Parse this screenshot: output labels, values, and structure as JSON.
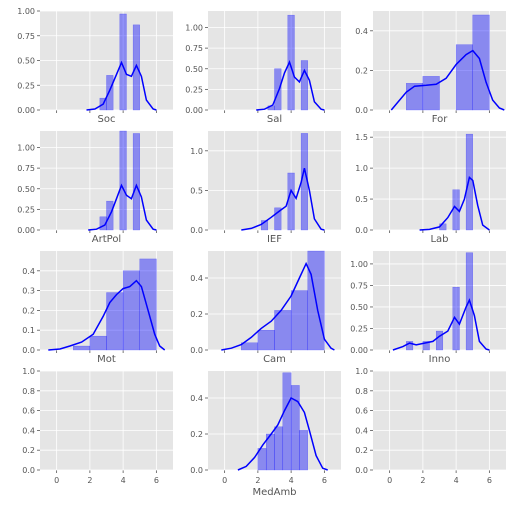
{
  "figure": {
    "background": "#ffffff",
    "panel_background": "#e5e5e5",
    "grid_color": "#ffffff",
    "bar_color": "#0000ff",
    "kde_color": "#0000ff",
    "tick_color": "#555555"
  },
  "chart_data": [
    {
      "type": "bar",
      "xlabel": "Soc",
      "xlim": [
        -1,
        7
      ],
      "ylim": [
        0,
        1.0
      ],
      "yticks": [
        "0.00",
        "0.25",
        "0.50",
        "0.75",
        "1.00"
      ],
      "ytick_values": [
        0,
        0.25,
        0.5,
        0.75,
        1.0
      ],
      "xticks_shown": false,
      "bins": [
        [
          2.6,
          3.0,
          0.12
        ],
        [
          3.0,
          3.4,
          0.35
        ],
        [
          3.4,
          3.8,
          0
        ],
        [
          3.8,
          4.2,
          0.97
        ],
        [
          4.2,
          4.6,
          0
        ],
        [
          4.6,
          5.0,
          0.86
        ]
      ],
      "kde": [
        [
          1.8,
          0
        ],
        [
          2.3,
          0.01
        ],
        [
          2.8,
          0.06
        ],
        [
          3.2,
          0.2
        ],
        [
          3.6,
          0.36
        ],
        [
          3.9,
          0.48
        ],
        [
          4.2,
          0.36
        ],
        [
          4.5,
          0.34
        ],
        [
          4.8,
          0.45
        ],
        [
          5.1,
          0.34
        ],
        [
          5.4,
          0.1
        ],
        [
          5.8,
          0.01
        ],
        [
          6.0,
          0
        ]
      ]
    },
    {
      "type": "bar",
      "xlabel": "Sal",
      "xlim": [
        -1,
        7
      ],
      "ylim": [
        0,
        1.2
      ],
      "yticks": [
        "0.00",
        "0.25",
        "0.50",
        "0.75",
        "1.00"
      ],
      "ytick_values": [
        0,
        0.25,
        0.5,
        0.75,
        1.0
      ],
      "xticks_shown": false,
      "bins": [
        [
          2.6,
          3.0,
          0.05
        ],
        [
          3.0,
          3.4,
          0.5
        ],
        [
          3.4,
          3.8,
          0
        ],
        [
          3.8,
          4.2,
          1.15
        ],
        [
          4.2,
          4.6,
          0
        ],
        [
          4.6,
          5.0,
          0.6
        ]
      ],
      "kde": [
        [
          1.9,
          0
        ],
        [
          2.4,
          0.01
        ],
        [
          2.9,
          0.06
        ],
        [
          3.3,
          0.26
        ],
        [
          3.6,
          0.45
        ],
        [
          3.9,
          0.58
        ],
        [
          4.2,
          0.4
        ],
        [
          4.5,
          0.34
        ],
        [
          4.8,
          0.48
        ],
        [
          5.1,
          0.36
        ],
        [
          5.4,
          0.1
        ],
        [
          5.8,
          0.01
        ],
        [
          6.0,
          0
        ]
      ]
    },
    {
      "type": "bar",
      "xlabel": "For",
      "xlim": [
        -1,
        7
      ],
      "ylim": [
        0,
        0.5
      ],
      "yticks": [
        "0.0",
        "0.2",
        "0.4"
      ],
      "ytick_values": [
        0,
        0.2,
        0.4
      ],
      "xticks_shown": false,
      "bins": [
        [
          1.0,
          2.0,
          0.135
        ],
        [
          2.0,
          3.0,
          0.17
        ],
        [
          3.0,
          4.0,
          0
        ],
        [
          4.0,
          5.0,
          0.33
        ],
        [
          5.0,
          6.0,
          0.48
        ]
      ],
      "kde": [
        [
          0.1,
          0
        ],
        [
          0.5,
          0.04
        ],
        [
          1.0,
          0.09
        ],
        [
          1.5,
          0.12
        ],
        [
          2.2,
          0.125
        ],
        [
          2.8,
          0.13
        ],
        [
          3.4,
          0.16
        ],
        [
          4.0,
          0.23
        ],
        [
          4.6,
          0.28
        ],
        [
          5.0,
          0.3
        ],
        [
          5.4,
          0.26
        ],
        [
          5.8,
          0.14
        ],
        [
          6.2,
          0.05
        ],
        [
          6.6,
          0.01
        ],
        [
          6.9,
          0
        ]
      ]
    },
    {
      "type": "bar",
      "xlabel": "ArtPol",
      "xlim": [
        -1,
        7
      ],
      "ylim": [
        0,
        1.2
      ],
      "yticks": [
        "0.00",
        "0.25",
        "0.50",
        "0.75",
        "1.00"
      ],
      "ytick_values": [
        0,
        0.25,
        0.5,
        0.75,
        1.0
      ],
      "xticks_shown": false,
      "bins": [
        [
          2.6,
          3.0,
          0.16
        ],
        [
          3.0,
          3.4,
          0.35
        ],
        [
          3.4,
          3.8,
          0
        ],
        [
          3.8,
          4.2,
          1.2
        ],
        [
          4.2,
          4.6,
          0
        ],
        [
          4.6,
          5.0,
          1.17
        ]
      ],
      "kde": [
        [
          1.9,
          0
        ],
        [
          2.4,
          0.01
        ],
        [
          2.9,
          0.06
        ],
        [
          3.3,
          0.22
        ],
        [
          3.6,
          0.38
        ],
        [
          3.9,
          0.54
        ],
        [
          4.2,
          0.42
        ],
        [
          4.5,
          0.38
        ],
        [
          4.8,
          0.54
        ],
        [
          5.1,
          0.4
        ],
        [
          5.4,
          0.12
        ],
        [
          5.8,
          0.01
        ],
        [
          6.0,
          0
        ]
      ]
    },
    {
      "type": "bar",
      "xlabel": "IEF",
      "xlim": [
        -1,
        7
      ],
      "ylim": [
        0,
        1.25
      ],
      "yticks": [
        "0.0",
        "0.5",
        "1.0"
      ],
      "ytick_values": [
        0,
        0.5,
        1.0
      ],
      "xticks_shown": false,
      "bins": [
        [
          2.2,
          2.6,
          0.12
        ],
        [
          2.6,
          3.0,
          0
        ],
        [
          3.0,
          3.4,
          0.28
        ],
        [
          3.4,
          3.8,
          0
        ],
        [
          3.8,
          4.2,
          0.72
        ],
        [
          4.2,
          4.6,
          0
        ],
        [
          4.6,
          5.0,
          1.22
        ]
      ],
      "kde": [
        [
          1.0,
          0
        ],
        [
          1.6,
          0.02
        ],
        [
          2.2,
          0.07
        ],
        [
          2.8,
          0.16
        ],
        [
          3.3,
          0.24
        ],
        [
          3.7,
          0.3
        ],
        [
          4.0,
          0.5
        ],
        [
          4.3,
          0.4
        ],
        [
          4.6,
          0.6
        ],
        [
          4.8,
          0.78
        ],
        [
          5.1,
          0.5
        ],
        [
          5.4,
          0.14
        ],
        [
          5.8,
          0.01
        ],
        [
          6.0,
          0
        ]
      ]
    },
    {
      "type": "bar",
      "xlabel": "Lab",
      "xlim": [
        -1,
        7
      ],
      "ylim": [
        0,
        1.6
      ],
      "yticks": [
        "0.0",
        "0.5",
        "1.0",
        "1.5"
      ],
      "ytick_values": [
        0,
        0.5,
        1.0,
        1.5
      ],
      "xticks_shown": false,
      "bins": [
        [
          3.0,
          3.4,
          0.1
        ],
        [
          3.4,
          3.8,
          0
        ],
        [
          3.8,
          4.2,
          0.65
        ],
        [
          4.2,
          4.6,
          0
        ],
        [
          4.6,
          5.0,
          1.55
        ]
      ],
      "kde": [
        [
          1.8,
          0
        ],
        [
          2.4,
          0.01
        ],
        [
          3.0,
          0.05
        ],
        [
          3.5,
          0.2
        ],
        [
          3.9,
          0.38
        ],
        [
          4.2,
          0.3
        ],
        [
          4.5,
          0.5
        ],
        [
          4.8,
          0.85
        ],
        [
          5.0,
          0.8
        ],
        [
          5.3,
          0.4
        ],
        [
          5.6,
          0.08
        ],
        [
          6.0,
          0
        ]
      ]
    },
    {
      "type": "bar",
      "xlabel": "Mot",
      "xlim": [
        -1,
        7
      ],
      "ylim": [
        0,
        0.5
      ],
      "yticks": [
        "0.0",
        "0.1",
        "0.2",
        "0.3",
        "0.4"
      ],
      "ytick_values": [
        0,
        0.1,
        0.2,
        0.3,
        0.4
      ],
      "xticks_shown": false,
      "bins": [
        [
          1.0,
          2.0,
          0.02
        ],
        [
          2.0,
          3.0,
          0.07
        ],
        [
          3.0,
          4.0,
          0.29
        ],
        [
          4.0,
          5.0,
          0.4
        ],
        [
          5.0,
          6.0,
          0.46
        ]
      ],
      "kde": [
        [
          -0.5,
          0
        ],
        [
          0.2,
          0.005
        ],
        [
          0.8,
          0.02
        ],
        [
          1.5,
          0.04
        ],
        [
          2.2,
          0.08
        ],
        [
          2.8,
          0.17
        ],
        [
          3.2,
          0.24
        ],
        [
          3.6,
          0.28
        ],
        [
          4.0,
          0.31
        ],
        [
          4.4,
          0.32
        ],
        [
          4.8,
          0.35
        ],
        [
          5.1,
          0.32
        ],
        [
          5.5,
          0.2
        ],
        [
          5.9,
          0.08
        ],
        [
          6.2,
          0.02
        ],
        [
          6.5,
          0
        ]
      ]
    },
    {
      "type": "bar",
      "xlabel": "Cam",
      "xlim": [
        -1,
        7
      ],
      "ylim": [
        0,
        0.55
      ],
      "yticks": [
        "0.0",
        "0.2",
        "0.4"
      ],
      "ytick_values": [
        0,
        0.2,
        0.4
      ],
      "xticks_shown": false,
      "bins": [
        [
          1.0,
          2.0,
          0.04
        ],
        [
          2.0,
          3.0,
          0.11
        ],
        [
          3.0,
          4.0,
          0.22
        ],
        [
          4.0,
          5.0,
          0.33
        ],
        [
          5.0,
          6.0,
          0.55
        ]
      ],
      "kde": [
        [
          -0.2,
          0
        ],
        [
          0.4,
          0.01
        ],
        [
          1.0,
          0.03
        ],
        [
          1.6,
          0.07
        ],
        [
          2.2,
          0.12
        ],
        [
          2.8,
          0.16
        ],
        [
          3.4,
          0.22
        ],
        [
          4.0,
          0.3
        ],
        [
          4.5,
          0.4
        ],
        [
          4.9,
          0.48
        ],
        [
          5.2,
          0.42
        ],
        [
          5.6,
          0.22
        ],
        [
          6.0,
          0.06
        ],
        [
          6.4,
          0.01
        ],
        [
          6.6,
          0
        ]
      ]
    },
    {
      "type": "bar",
      "xlabel": "Inno",
      "xlim": [
        -1,
        7
      ],
      "ylim": [
        0,
        1.15
      ],
      "yticks": [
        "0.00",
        "0.25",
        "0.50",
        "0.75",
        "1.00"
      ],
      "ytick_values": [
        0,
        0.25,
        0.5,
        0.75,
        1.0
      ],
      "xticks_shown": false,
      "bins": [
        [
          1.0,
          1.4,
          0.1
        ],
        [
          1.4,
          2.0,
          0
        ],
        [
          2.0,
          2.4,
          0.1
        ],
        [
          2.4,
          2.8,
          0
        ],
        [
          2.8,
          3.2,
          0.22
        ],
        [
          3.2,
          3.8,
          0
        ],
        [
          3.8,
          4.2,
          0.73
        ],
        [
          4.2,
          4.6,
          0
        ],
        [
          4.6,
          5.0,
          1.13
        ]
      ],
      "kde": [
        [
          0.2,
          0
        ],
        [
          0.8,
          0.04
        ],
        [
          1.2,
          0.08
        ],
        [
          1.6,
          0.06
        ],
        [
          2.1,
          0.08
        ],
        [
          2.6,
          0.1
        ],
        [
          3.0,
          0.16
        ],
        [
          3.5,
          0.22
        ],
        [
          3.9,
          0.38
        ],
        [
          4.2,
          0.3
        ],
        [
          4.6,
          0.5
        ],
        [
          4.8,
          0.58
        ],
        [
          5.1,
          0.4
        ],
        [
          5.4,
          0.1
        ],
        [
          5.8,
          0.01
        ],
        [
          6.0,
          0
        ]
      ]
    },
    {
      "type": "bar",
      "xlabel": "",
      "xlim": [
        -1,
        7
      ],
      "ylim": [
        0,
        1.0
      ],
      "yticks": [
        "0.0",
        "0.2",
        "0.4",
        "0.6",
        "0.8",
        "1.0"
      ],
      "ytick_values": [
        0,
        0.2,
        0.4,
        0.6,
        0.8,
        1.0
      ],
      "xticks_shown": true,
      "xticks": [
        "0",
        "2",
        "4",
        "6"
      ],
      "xtick_values": [
        0,
        2,
        4,
        6
      ],
      "bins": [],
      "kde": []
    },
    {
      "type": "bar",
      "xlabel": "MedAmb",
      "xlim": [
        -1,
        7
      ],
      "ylim": [
        0,
        0.55
      ],
      "yticks": [
        "0.0",
        "0.2",
        "0.4"
      ],
      "ytick_values": [
        0,
        0.2,
        0.4
      ],
      "xticks_shown": true,
      "xticks": [
        "0",
        "2",
        "4",
        "6"
      ],
      "xtick_values": [
        0,
        2,
        4,
        6
      ],
      "bins": [
        [
          2.0,
          2.5,
          0.12
        ],
        [
          2.5,
          3.0,
          0.2
        ],
        [
          3.0,
          3.5,
          0.24
        ],
        [
          3.5,
          4.0,
          0.54
        ],
        [
          4.0,
          4.5,
          0.47
        ],
        [
          4.5,
          5.0,
          0.22
        ]
      ],
      "kde": [
        [
          0.8,
          0
        ],
        [
          1.3,
          0.02
        ],
        [
          1.8,
          0.07
        ],
        [
          2.3,
          0.14
        ],
        [
          2.8,
          0.2
        ],
        [
          3.2,
          0.25
        ],
        [
          3.6,
          0.33
        ],
        [
          4.0,
          0.4
        ],
        [
          4.4,
          0.38
        ],
        [
          4.8,
          0.32
        ],
        [
          5.1,
          0.22
        ],
        [
          5.5,
          0.08
        ],
        [
          5.9,
          0.01
        ],
        [
          6.2,
          0
        ]
      ]
    },
    {
      "type": "bar",
      "xlabel": "",
      "xlim": [
        -1,
        7
      ],
      "ylim": [
        0,
        1.0
      ],
      "yticks": [
        "0.0",
        "0.2",
        "0.4",
        "0.6",
        "0.8",
        "1.0"
      ],
      "ytick_values": [
        0,
        0.2,
        0.4,
        0.6,
        0.8,
        1.0
      ],
      "xticks_shown": true,
      "xticks": [
        "0",
        "2",
        "4",
        "6"
      ],
      "xtick_values": [
        0,
        2,
        4,
        6
      ],
      "bins": [],
      "kde": []
    }
  ]
}
